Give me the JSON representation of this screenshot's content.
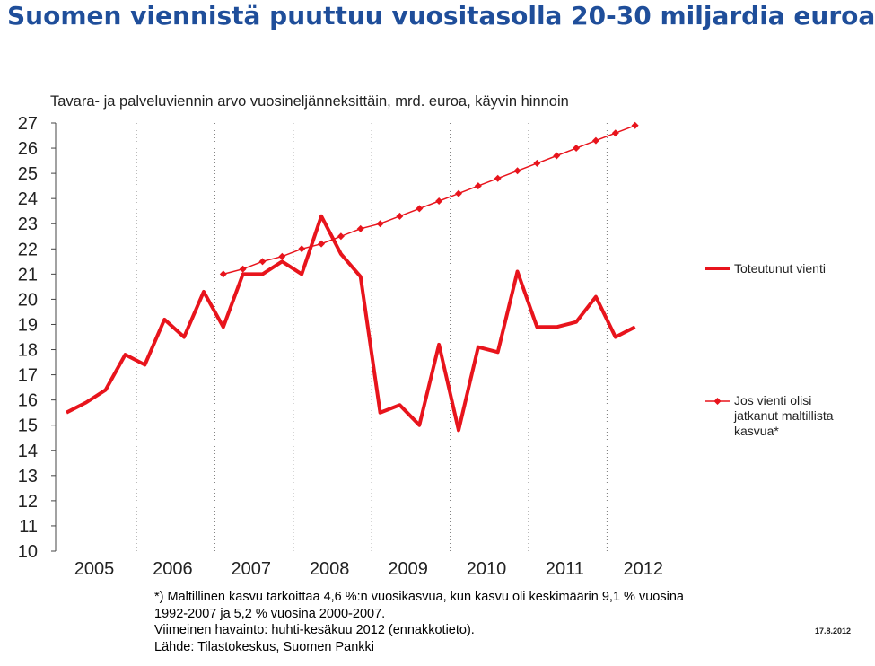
{
  "title": "Suomen viennistä puuttuu vuositasolla 20-30 miljardia euroa",
  "chart_data": {
    "type": "line",
    "subtitle": "Tavara- ja palveluviennin arvo vuosineljänneksittäin, mrd. euroa, käyvin hinnoin",
    "ylim": [
      10,
      27
    ],
    "y_ticks": [
      "10",
      "11",
      "12",
      "13",
      "14",
      "15",
      "16",
      "17",
      "18",
      "19",
      "20",
      "21",
      "22",
      "23",
      "24",
      "25",
      "26",
      "27"
    ],
    "x_tick_labels": [
      "2005",
      "2006",
      "2007",
      "2008",
      "2009",
      "2010",
      "2011",
      "2012"
    ],
    "grid_x": true,
    "legend_placement": "right",
    "series": [
      {
        "name": "Toteutunut vienti",
        "color": "#e8141c",
        "x": [
          "2005Q1",
          "2005Q2",
          "2005Q3",
          "2005Q4",
          "2006Q1",
          "2006Q2",
          "2006Q3",
          "2006Q4",
          "2007Q1",
          "2007Q2",
          "2007Q3",
          "2007Q4",
          "2008Q1",
          "2008Q2",
          "2008Q3",
          "2008Q4",
          "2009Q1",
          "2009Q2",
          "2009Q3",
          "2009Q4",
          "2010Q1",
          "2010Q2",
          "2010Q3",
          "2010Q4",
          "2011Q1",
          "2011Q2",
          "2011Q3",
          "2011Q4",
          "2012Q1",
          "2012Q2"
        ],
        "values": [
          15.5,
          15.9,
          16.4,
          17.8,
          17.4,
          19.2,
          18.5,
          20.3,
          18.9,
          21.0,
          21.0,
          21.5,
          21.0,
          23.3,
          21.8,
          20.9,
          15.5,
          15.8,
          15.0,
          18.2,
          14.8,
          18.1,
          17.9,
          21.1,
          18.9,
          18.9,
          19.1,
          20.1,
          18.5,
          18.9
        ]
      },
      {
        "name": "Jos vienti olisi jatkanut maltillista kasvua*",
        "color": "#e8141c",
        "marker": "diamond",
        "x": [
          "2007Q1",
          "2007Q2",
          "2007Q3",
          "2007Q4",
          "2008Q1",
          "2008Q2",
          "2008Q3",
          "2008Q4",
          "2009Q1",
          "2009Q2",
          "2009Q3",
          "2009Q4",
          "2010Q1",
          "2010Q2",
          "2010Q3",
          "2010Q4",
          "2011Q1",
          "2011Q2",
          "2011Q3",
          "2011Q4",
          "2012Q1",
          "2012Q2"
        ],
        "values": [
          21.0,
          21.2,
          21.5,
          21.7,
          22.0,
          22.2,
          22.5,
          22.8,
          23.0,
          23.3,
          23.6,
          23.9,
          24.2,
          24.5,
          24.8,
          25.1,
          25.4,
          25.7,
          26.0,
          26.3,
          26.6,
          26.9
        ]
      }
    ]
  },
  "legend": {
    "actual_label": "Toteutunut vienti",
    "trend_label_lines": [
      "Jos vienti olisi",
      "jatkanut maltillista",
      "kasvua*"
    ]
  },
  "footnote": {
    "lines": [
      "*) Maltillinen kasvu tarkoittaa 4,6 %:n vuosikasvua, kun kasvu oli keskimäärin 9,1 % vuosina",
      "1992-2007 ja 5,2 % vuosina 2000-2007.",
      "Viimeinen havainto: huhti-kesäkuu 2012 (ennakkotieto).",
      "Lähde: Tilastokeskus, Suomen Pankki"
    ]
  },
  "date": "17.8.2012"
}
